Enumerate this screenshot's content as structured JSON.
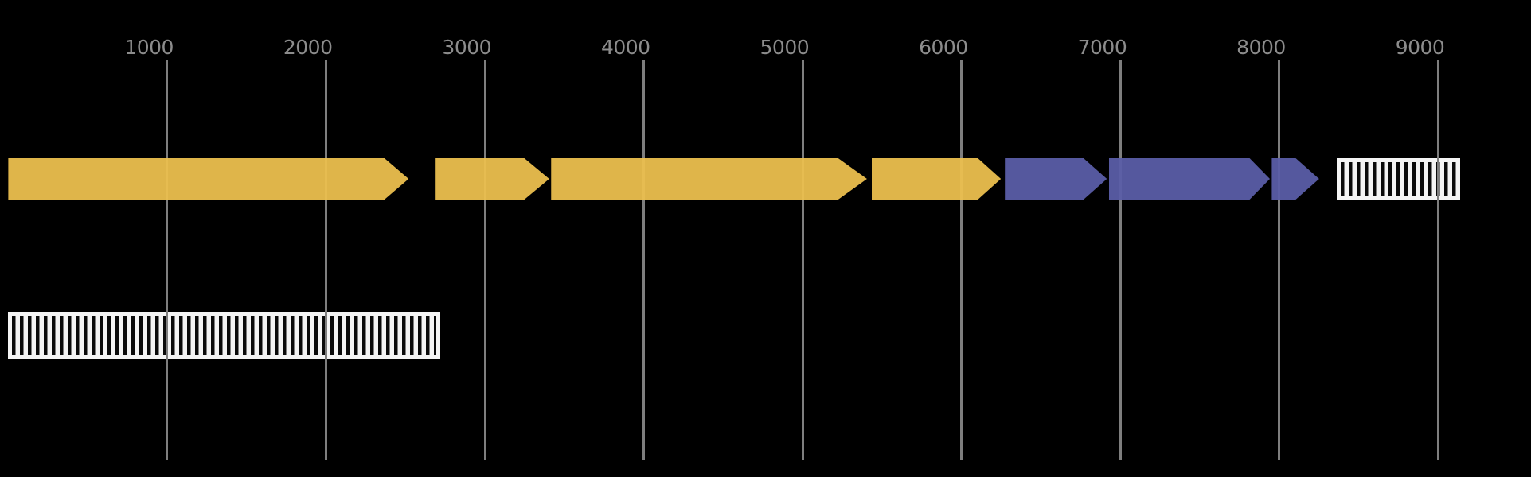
{
  "chart_data": {
    "type": "genome_map",
    "title": "",
    "xlabel": "",
    "ylabel": "",
    "axis": {
      "unit": "bp",
      "xlim": [
        0,
        9580
      ],
      "ticks": [
        1000,
        2000,
        3000,
        4000,
        5000,
        6000,
        7000,
        8000,
        9000
      ],
      "tick_labels": [
        "1000",
        "2000",
        "3000",
        "4000",
        "5000",
        "6000",
        "7000",
        "8000",
        "9000"
      ],
      "grid": true,
      "legend": "none"
    },
    "colors": {
      "background": "#000000",
      "gridline": "#7E7E7E",
      "tick_text": "#8C8C8C",
      "gene_yellow": "#EDC04F",
      "gene_purple": "#5A5DA8",
      "hatch_fill": "#F4F4F4",
      "hatch_stripe": "#0A0A0A"
    },
    "tracks": [
      {
        "name": "top",
        "features": [
          {
            "kind": "arrow",
            "start": 0,
            "end": 2520,
            "strand": "+",
            "head_bp": 155,
            "color_key": "gene_yellow"
          },
          {
            "kind": "arrow",
            "start": 2690,
            "end": 3405,
            "strand": "+",
            "head_bp": 160,
            "color_key": "gene_yellow"
          },
          {
            "kind": "arrow",
            "start": 3417,
            "end": 5405,
            "strand": "+",
            "head_bp": 185,
            "color_key": "gene_yellow"
          },
          {
            "kind": "arrow",
            "start": 5435,
            "end": 6248,
            "strand": "+",
            "head_bp": 148,
            "color_key": "gene_yellow"
          },
          {
            "kind": "arrow",
            "start": 6273,
            "end": 6915,
            "strand": "+",
            "head_bp": 150,
            "color_key": "gene_purple"
          },
          {
            "kind": "arrow",
            "start": 6928,
            "end": 7941,
            "strand": "+",
            "head_bp": 130,
            "color_key": "gene_purple"
          },
          {
            "kind": "arrow",
            "start": 7953,
            "end": 8251,
            "strand": "+",
            "head_bp": 150,
            "color_key": "gene_purple"
          },
          {
            "kind": "hatched_box",
            "start": 8362,
            "end": 9139
          }
        ]
      },
      {
        "name": "bottom",
        "features": [
          {
            "kind": "hatched_box",
            "start": 0,
            "end": 2719
          }
        ]
      }
    ]
  }
}
